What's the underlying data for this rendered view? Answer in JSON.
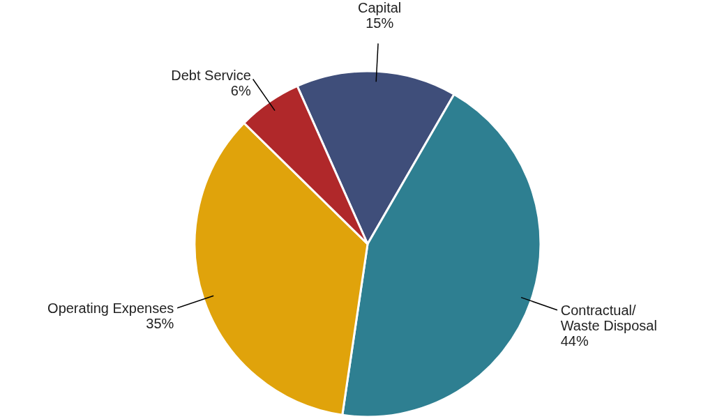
{
  "chart_data": {
    "type": "pie",
    "categories": [
      "Capital",
      "Contractual/\nWaste Disposal",
      "Operating Expenses",
      "Debt Service"
    ],
    "values": [
      15,
      44,
      35,
      6
    ],
    "value_labels": [
      "15%",
      "44%",
      "35%",
      "6%"
    ],
    "colors": [
      "#3f4e7a",
      "#2e7f91",
      "#e0a30b",
      "#b0282a"
    ]
  }
}
